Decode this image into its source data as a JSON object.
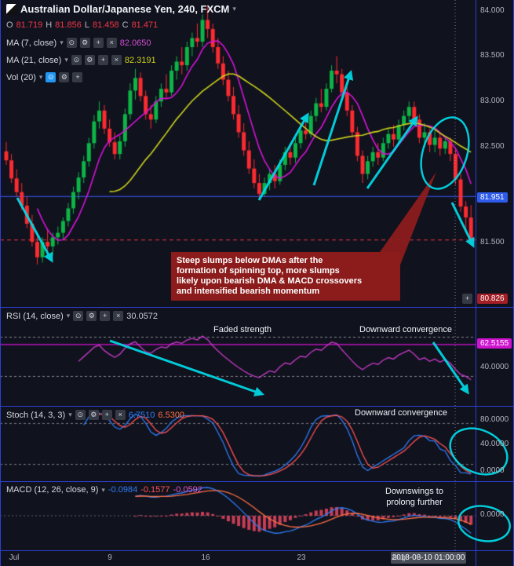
{
  "header": {
    "title": "Australian Dollar/Japanese Yen, 240, FXCM",
    "ohlc": {
      "o_l": "O",
      "o": "81.719",
      "h_l": "H",
      "h": "81.856",
      "l_l": "L",
      "l": "81.458",
      "c_l": "C",
      "c": "81.471"
    },
    "ma7": {
      "name": "MA (7, close)",
      "value": "82.0650"
    },
    "ma21": {
      "name": "MA (21, close)",
      "value": "82.3191"
    },
    "vol": {
      "name": "Vol (20)"
    }
  },
  "icons": {
    "eye": "⊙",
    "gear": "⚙",
    "add": "+",
    "close": "×",
    "caret": "▾",
    "plus": "+"
  },
  "annotation": {
    "l1": "Steep slumps below DMAs after the",
    "l2": "formation of spinning top, more slumps",
    "l3": "likely upon bearish DMA & MACD crossovers",
    "l4": "and intensified bearish momentum"
  },
  "rsi": {
    "title": "RSI (14, close)",
    "value": "30.0572",
    "label_faded": "Faded strength",
    "label_conv": "Downward convergence",
    "axis_level": "62.5155",
    "axis_40": "40.0000"
  },
  "stoch": {
    "title": "Stoch (14, 3, 3)",
    "k": "6.7510",
    "d": "6.5300",
    "label": "Downward convergence",
    "axis_80": "80.0000",
    "axis_40": "40.0000",
    "axis_0": "0.0000"
  },
  "macd": {
    "title": "MACD (12, 26, close, 9)",
    "v1": "-0.0984",
    "v2": "-0.1577",
    "v3": "-0.0592",
    "label_1": "Downswings to",
    "label_2": "prolong further",
    "axis_0": "0.0000"
  },
  "price_axis": {
    "p_84": "84.000",
    "p_835": "83.500",
    "p_83": "83.000",
    "p_825": "82.500",
    "p_81951": "81.951",
    "p_815": "81.500",
    "p_808": "80.826"
  },
  "time_axis": {
    "t_jul": "Jul",
    "t_9": "9",
    "t_16": "16",
    "t_23": "23",
    "t_aug": "Aug",
    "highlight": "2018-08-10 01:00:00"
  },
  "colors": {
    "bg": "#10121e",
    "grid_blue": "#2e3fd0",
    "candle_up": "#0cb546",
    "candle_down": "#fb2b30",
    "ma7": "#d813d8",
    "ma21": "#cdd41c",
    "level_blue": "#3c5bff",
    "last_price_red": "#f23645",
    "rsi_line": "#c23ac2",
    "rsi_level": "#d813d8",
    "stoch_k": "#2d7df6",
    "stoch_d": "#ff5252",
    "macd_line": "#2d7df6",
    "macd_signal": "#ff7043",
    "macd_hist": "#e8465f",
    "arrow": "#00dbe8",
    "annotation_bg": "#8c1c1c",
    "badge_blue_bg": "#2f5bea",
    "badge_red_bg": "#a31e25",
    "badge_magenta_bg": "#cf13cf"
  },
  "chart_data": {
    "type": "candlestick",
    "title": "Australian Dollar/Japanese Yen, 240, FXCM",
    "symbol": "AUD/JPY",
    "timeframe_minutes": 240,
    "provider": "FXCM",
    "ohlc_current": {
      "open": 81.719,
      "high": 81.856,
      "low": 81.458,
      "close": 81.471
    },
    "price_axis_ticks": [
      84.0,
      83.5,
      83.0,
      82.5,
      81.951,
      81.5,
      80.826
    ],
    "x_axis_labels": [
      "Jul",
      "9",
      "16",
      "23",
      "Aug"
    ],
    "highlighted_time": "2018-08-10 01:00:00",
    "price_range": [
      80.76,
      84.12
    ],
    "levels": {
      "horizontal_blue": 81.951,
      "last_price": 81.471
    },
    "indicators": [
      {
        "name": "MA",
        "params": "7, close",
        "value": 82.065
      },
      {
        "name": "MA",
        "params": "21, close",
        "value": 82.3191
      },
      {
        "name": "Vol",
        "params": "20"
      },
      {
        "name": "RSI",
        "params": "14, close",
        "value": 30.0572,
        "drawn_level": 62.5155,
        "bands": [
          70,
          30
        ]
      },
      {
        "name": "Stoch",
        "params": "14, 3, 3",
        "k": 6.751,
        "d": 6.53,
        "bands": [
          80,
          20
        ]
      },
      {
        "name": "MACD",
        "params": "12, 26, close, 9",
        "macd": -0.0984,
        "signal": -0.1577,
        "hist": -0.0592
      }
    ],
    "candles": [
      [
        82.45,
        82.55,
        82.3,
        82.35
      ],
      [
        82.35,
        82.42,
        82.1,
        82.15
      ],
      [
        82.15,
        82.25,
        81.95,
        82.0
      ],
      [
        82.0,
        82.1,
        81.8,
        81.85
      ],
      [
        81.85,
        81.95,
        81.6,
        81.65
      ],
      [
        81.65,
        81.75,
        81.4,
        81.45
      ],
      [
        81.45,
        81.55,
        81.2,
        81.28
      ],
      [
        81.28,
        81.5,
        81.22,
        81.45
      ],
      [
        81.45,
        81.6,
        81.35,
        81.4
      ],
      [
        81.4,
        81.55,
        81.3,
        81.5
      ],
      [
        81.5,
        81.62,
        81.42,
        81.55
      ],
      [
        81.55,
        81.72,
        81.48,
        81.68
      ],
      [
        81.68,
        81.88,
        81.62,
        81.82
      ],
      [
        81.82,
        82.06,
        81.76,
        82.0
      ],
      [
        82.0,
        82.22,
        81.92,
        82.16
      ],
      [
        82.16,
        82.4,
        82.1,
        82.34
      ],
      [
        82.34,
        82.6,
        82.28,
        82.54
      ],
      [
        82.54,
        82.85,
        82.48,
        82.78
      ],
      [
        82.78,
        83.0,
        82.7,
        82.9
      ],
      [
        82.9,
        82.96,
        82.64,
        82.7
      ],
      [
        82.7,
        82.8,
        82.5,
        82.55
      ],
      [
        82.55,
        82.66,
        82.36,
        82.42
      ],
      [
        82.42,
        82.62,
        82.36,
        82.56
      ],
      [
        82.56,
        82.92,
        82.5,
        82.86
      ],
      [
        82.86,
        83.2,
        82.8,
        83.12
      ],
      [
        83.12,
        83.36,
        83.02,
        83.26
      ],
      [
        83.26,
        83.32,
        83.0,
        83.06
      ],
      [
        83.06,
        83.12,
        82.8,
        82.86
      ],
      [
        82.86,
        82.96,
        82.7,
        82.8
      ],
      [
        82.8,
        83.06,
        82.76,
        83.0
      ],
      [
        83.0,
        83.2,
        82.94,
        83.14
      ],
      [
        83.14,
        83.3,
        83.04,
        83.1
      ],
      [
        83.1,
        83.4,
        83.06,
        83.34
      ],
      [
        83.34,
        83.5,
        83.24,
        83.44
      ],
      [
        83.44,
        83.6,
        83.3,
        83.4
      ],
      [
        83.4,
        83.66,
        83.34,
        83.6
      ],
      [
        83.6,
        83.76,
        83.5,
        83.7
      ],
      [
        83.7,
        83.86,
        83.6,
        83.66
      ],
      [
        83.66,
        83.96,
        83.6,
        83.9
      ],
      [
        83.9,
        84.06,
        83.7,
        83.8
      ],
      [
        83.8,
        83.86,
        83.54,
        83.6
      ],
      [
        83.6,
        83.7,
        83.36,
        83.42
      ],
      [
        83.42,
        83.5,
        83.18,
        83.24
      ],
      [
        83.24,
        83.34,
        83.0,
        83.06
      ],
      [
        83.06,
        83.16,
        82.8,
        82.86
      ],
      [
        82.86,
        82.96,
        82.6,
        82.66
      ],
      [
        82.66,
        82.76,
        82.4,
        82.46
      ],
      [
        82.46,
        82.56,
        82.2,
        82.26
      ],
      [
        82.26,
        82.36,
        82.04,
        82.1
      ],
      [
        82.1,
        82.2,
        81.93,
        81.98
      ],
      [
        81.98,
        82.16,
        81.95,
        82.1
      ],
      [
        82.1,
        82.26,
        82.02,
        82.2
      ],
      [
        82.2,
        82.3,
        82.04,
        82.12
      ],
      [
        82.12,
        82.36,
        82.08,
        82.3
      ],
      [
        82.3,
        82.5,
        82.24,
        82.44
      ],
      [
        82.44,
        82.54,
        82.3,
        82.38
      ],
      [
        82.38,
        82.6,
        82.32,
        82.54
      ],
      [
        82.54,
        82.74,
        82.48,
        82.68
      ],
      [
        82.68,
        82.84,
        82.58,
        82.64
      ],
      [
        82.64,
        82.9,
        82.6,
        82.84
      ],
      [
        82.84,
        83.04,
        82.78,
        82.98
      ],
      [
        82.98,
        83.14,
        82.88,
        82.94
      ],
      [
        82.94,
        83.2,
        82.9,
        83.14
      ],
      [
        83.14,
        83.4,
        83.1,
        83.34
      ],
      [
        83.34,
        83.5,
        83.2,
        83.3
      ],
      [
        83.3,
        83.36,
        83.04,
        83.1
      ],
      [
        83.1,
        83.16,
        82.84,
        82.9
      ],
      [
        82.9,
        82.96,
        82.6,
        82.66
      ],
      [
        82.66,
        82.72,
        82.34,
        82.4
      ],
      [
        82.4,
        82.46,
        82.1,
        82.2
      ],
      [
        82.2,
        82.4,
        82.14,
        82.34
      ],
      [
        82.34,
        82.5,
        82.28,
        82.44
      ],
      [
        82.44,
        82.54,
        82.3,
        82.38
      ],
      [
        82.38,
        82.6,
        82.34,
        82.54
      ],
      [
        82.54,
        82.7,
        82.48,
        82.64
      ],
      [
        82.64,
        82.74,
        82.5,
        82.58
      ],
      [
        82.58,
        82.8,
        82.54,
        82.74
      ],
      [
        82.74,
        82.9,
        82.68,
        82.84
      ],
      [
        82.84,
        83.0,
        82.78,
        82.94
      ],
      [
        82.94,
        83.0,
        82.74,
        82.8
      ],
      [
        82.8,
        82.86,
        82.54,
        82.6
      ],
      [
        82.6,
        82.76,
        82.5,
        82.66
      ],
      [
        82.66,
        82.7,
        82.44,
        82.52
      ],
      [
        82.52,
        82.68,
        82.44,
        82.6
      ],
      [
        82.6,
        82.66,
        82.4,
        82.48
      ],
      [
        82.48,
        82.62,
        82.42,
        82.56
      ],
      [
        82.56,
        82.6,
        82.34,
        82.42
      ],
      [
        82.42,
        82.48,
        82.08,
        82.14
      ],
      [
        82.14,
        82.2,
        81.78,
        81.84
      ],
      [
        81.84,
        81.9,
        81.55,
        81.72
      ],
      [
        81.719,
        81.856,
        81.458,
        81.471
      ]
    ]
  }
}
